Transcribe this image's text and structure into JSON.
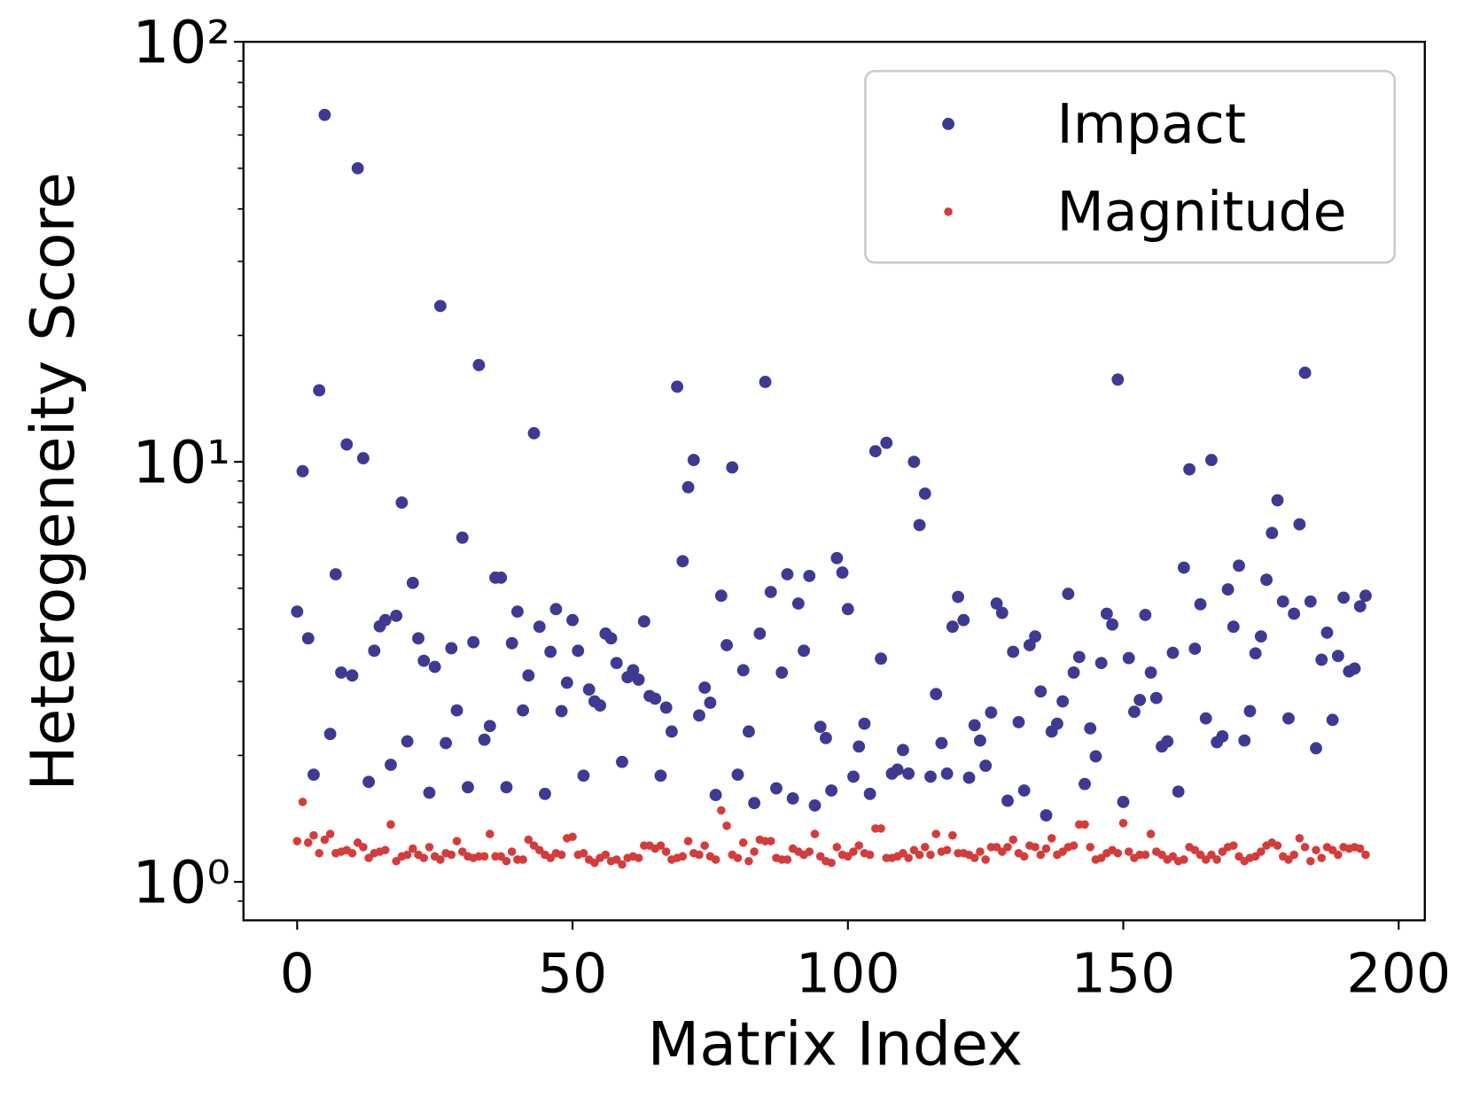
{
  "chart_data": {
    "type": "scatter",
    "xlabel": "Matrix Index",
    "ylabel": "Heterogeneity Score",
    "x": [
      0,
      1,
      2,
      3,
      4,
      5,
      6,
      7,
      8,
      9,
      10,
      11,
      12,
      13,
      14,
      15,
      16,
      17,
      18,
      19,
      20,
      21,
      22,
      23,
      24,
      25,
      26,
      27,
      28,
      29,
      30,
      31,
      32,
      33,
      34,
      35,
      36,
      37,
      38,
      39,
      40,
      41,
      42,
      43,
      44,
      45,
      46,
      47,
      48,
      49,
      50,
      51,
      52,
      53,
      54,
      55,
      56,
      57,
      58,
      59,
      60,
      61,
      62,
      63,
      64,
      65,
      66,
      67,
      68,
      69,
      70,
      71,
      72,
      73,
      74,
      75,
      76,
      77,
      78,
      79,
      80,
      81,
      82,
      83,
      84,
      85,
      86,
      87,
      88,
      89,
      90,
      91,
      92,
      93,
      94,
      95,
      96,
      97,
      98,
      99,
      100,
      101,
      102,
      103,
      104,
      105,
      106,
      107,
      108,
      109,
      110,
      111,
      112,
      113,
      114,
      115,
      116,
      117,
      118,
      119,
      120,
      121,
      122,
      123,
      124,
      125,
      126,
      127,
      128,
      129,
      130,
      131,
      132,
      133,
      134,
      135,
      136,
      137,
      138,
      139,
      140,
      141,
      142,
      143,
      144,
      145,
      146,
      147,
      148,
      149,
      150,
      151,
      152,
      153,
      154,
      155,
      156,
      157,
      158,
      159,
      160,
      161,
      162,
      163,
      164,
      165,
      166,
      167,
      168,
      169,
      170,
      171,
      172,
      173,
      174,
      175,
      176,
      177,
      178,
      179,
      180,
      181,
      182,
      183,
      184,
      185,
      186,
      187,
      188,
      189,
      190,
      191,
      192,
      193,
      194
    ],
    "series": [
      {
        "name": "Impact",
        "color": "#3e3a93",
        "values": [
          4.4,
          9.5,
          3.8,
          1.8,
          14.8,
          67,
          2.25,
          5.4,
          3.15,
          11.0,
          3.1,
          50,
          10.2,
          1.73,
          3.55,
          4.06,
          4.2,
          1.9,
          4.3,
          8.0,
          2.16,
          5.15,
          3.8,
          3.36,
          1.63,
          3.25,
          23.5,
          2.14,
          3.6,
          2.56,
          6.6,
          1.68,
          3.72,
          17.0,
          2.18,
          2.35,
          5.3,
          5.3,
          1.68,
          3.7,
          4.4,
          2.56,
          3.1,
          11.7,
          4.05,
          1.62,
          3.53,
          4.46,
          2.55,
          2.98,
          4.2,
          3.55,
          1.79,
          2.87,
          2.69,
          2.63,
          3.9,
          3.8,
          3.32,
          1.93,
          3.07,
          3.19,
          3.03,
          4.17,
          2.77,
          2.73,
          1.79,
          2.6,
          2.28,
          15.1,
          5.8,
          8.7,
          10.1,
          2.49,
          2.9,
          2.67,
          1.61,
          4.8,
          3.66,
          9.7,
          1.8,
          3.19,
          2.28,
          1.54,
          3.9,
          15.5,
          4.9,
          1.67,
          3.15,
          5.4,
          1.58,
          4.6,
          3.55,
          5.35,
          1.52,
          2.34,
          2.2,
          1.65,
          5.9,
          5.45,
          4.46,
          1.78,
          2.1,
          2.38,
          1.62,
          10.6,
          3.4,
          11.1,
          1.81,
          1.85,
          2.06,
          1.81,
          10.0,
          7.07,
          8.4,
          1.78,
          2.8,
          2.14,
          1.81,
          4.05,
          4.77,
          4.2,
          1.77,
          2.36,
          2.17,
          1.89,
          2.53,
          4.6,
          4.37,
          1.56,
          3.53,
          2.4,
          1.65,
          3.66,
          3.84,
          2.84,
          1.44,
          2.28,
          2.38,
          2.69,
          4.85,
          3.15,
          3.43,
          1.71,
          2.32,
          1.99,
          3.32,
          4.35,
          4.1,
          15.7,
          1.55,
          3.41,
          2.54,
          2.71,
          4.32,
          3.15,
          2.74,
          2.1,
          2.16,
          3.51,
          1.64,
          5.6,
          9.6,
          3.59,
          4.58,
          2.45,
          10.1,
          2.15,
          2.22,
          4.97,
          4.05,
          5.66,
          2.17,
          2.55,
          3.5,
          3.84,
          5.24,
          6.77,
          8.1,
          4.65,
          2.45,
          4.35,
          7.1,
          16.3,
          4.65,
          2.08,
          3.38,
          3.92,
          2.43,
          3.45,
          4.75,
          3.17,
          3.22,
          4.53,
          4.8
        ]
      },
      {
        "name": "Magnitude",
        "color": "#d43c3c",
        "values": [
          1.25,
          1.55,
          1.24,
          1.29,
          1.17,
          1.26,
          1.3,
          1.17,
          1.18,
          1.19,
          1.17,
          1.24,
          1.21,
          1.14,
          1.17,
          1.18,
          1.19,
          1.37,
          1.12,
          1.15,
          1.16,
          1.2,
          1.16,
          1.14,
          1.21,
          1.15,
          1.13,
          1.17,
          1.16,
          1.25,
          1.18,
          1.15,
          1.14,
          1.15,
          1.15,
          1.3,
          1.15,
          1.15,
          1.12,
          1.18,
          1.13,
          1.13,
          1.26,
          1.22,
          1.19,
          1.16,
          1.14,
          1.17,
          1.16,
          1.27,
          1.28,
          1.16,
          1.17,
          1.13,
          1.11,
          1.14,
          1.16,
          1.12,
          1.13,
          1.1,
          1.14,
          1.15,
          1.14,
          1.22,
          1.22,
          1.2,
          1.22,
          1.18,
          1.13,
          1.14,
          1.15,
          1.25,
          1.17,
          1.16,
          1.22,
          1.15,
          1.13,
          1.48,
          1.36,
          1.16,
          1.14,
          1.24,
          1.12,
          1.18,
          1.26,
          1.25,
          1.25,
          1.14,
          1.13,
          1.13,
          1.2,
          1.18,
          1.16,
          1.18,
          1.3,
          1.15,
          1.12,
          1.11,
          1.21,
          1.16,
          1.15,
          1.18,
          1.22,
          1.17,
          1.16,
          1.34,
          1.34,
          1.14,
          1.14,
          1.15,
          1.17,
          1.14,
          1.19,
          1.16,
          1.21,
          1.16,
          1.3,
          1.18,
          1.19,
          1.29,
          1.17,
          1.17,
          1.16,
          1.14,
          1.18,
          1.13,
          1.21,
          1.21,
          1.18,
          1.21,
          1.26,
          1.17,
          1.15,
          1.22,
          1.21,
          1.16,
          1.2,
          1.27,
          1.16,
          1.18,
          1.21,
          1.22,
          1.37,
          1.37,
          1.21,
          1.13,
          1.14,
          1.17,
          1.19,
          1.17,
          1.38,
          1.18,
          1.14,
          1.16,
          1.16,
          1.3,
          1.18,
          1.16,
          1.13,
          1.15,
          1.12,
          1.13,
          1.21,
          1.19,
          1.16,
          1.13,
          1.16,
          1.13,
          1.18,
          1.21,
          1.22,
          1.15,
          1.12,
          1.14,
          1.15,
          1.18,
          1.22,
          1.24,
          1.22,
          1.15,
          1.13,
          1.16,
          1.27,
          1.21,
          1.12,
          1.19,
          1.14,
          1.21,
          1.19,
          1.16,
          1.21,
          1.2,
          1.21,
          1.2,
          1.16
        ]
      }
    ],
    "xlim": [
      -9.75,
      204.75
    ],
    "xticks": [
      0,
      50,
      100,
      150,
      200
    ],
    "ylim": [
      0.81,
      100
    ],
    "log_y": true,
    "yticks": [
      {
        "value": 1,
        "label": "10⁰"
      },
      {
        "value": 10,
        "label": "10¹"
      },
      {
        "value": 100,
        "label": "10²"
      }
    ],
    "yminorticks": [
      0.9,
      2,
      3,
      4,
      5,
      6,
      7,
      8,
      9,
      20,
      30,
      40,
      50,
      60,
      70,
      80,
      90
    ],
    "legend": "upper right"
  }
}
